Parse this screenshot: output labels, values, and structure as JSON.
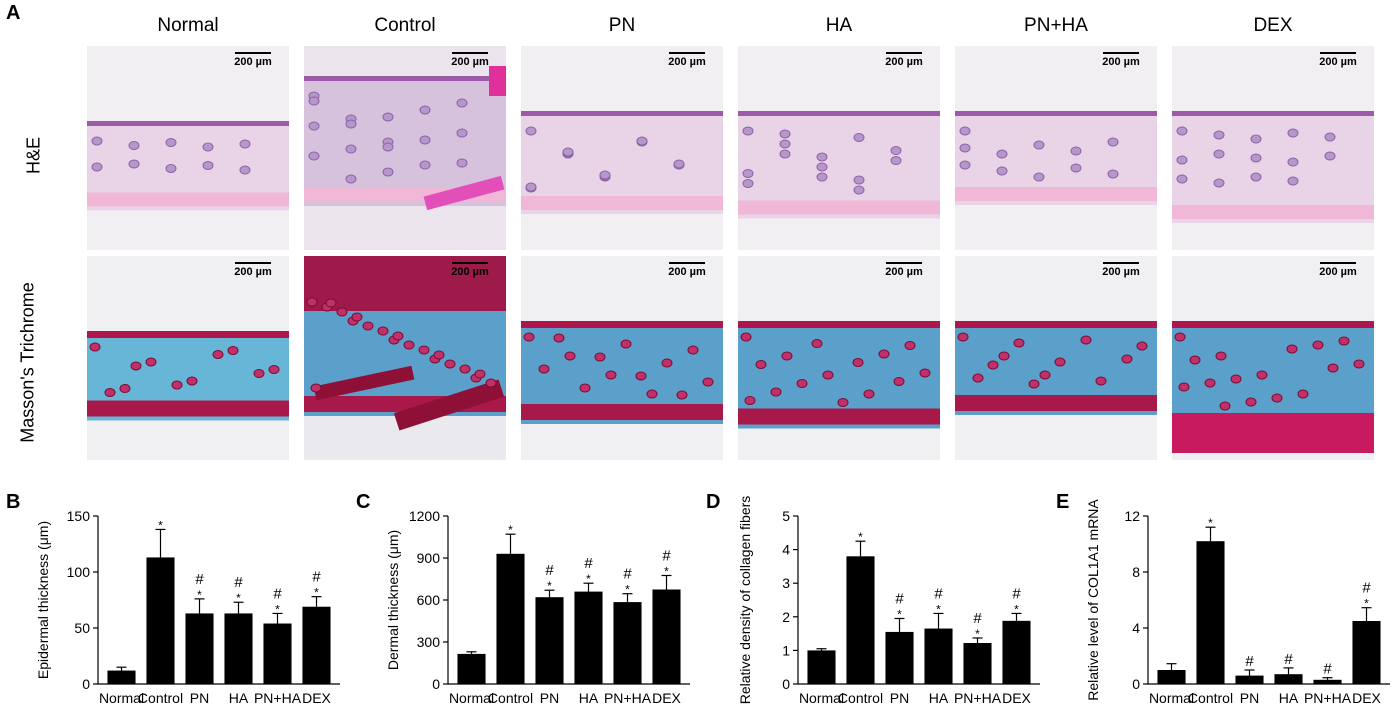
{
  "panel_a": {
    "letter": "A",
    "columns": [
      "Normal",
      "Control",
      "PN",
      "HA",
      "PN+HA",
      "DEX"
    ],
    "rows": [
      "H&E",
      "Masson's Trichrome"
    ],
    "scale_label": "200 µm"
  },
  "chart_data": [
    {
      "panel": "B",
      "type": "bar",
      "ylabel": "Epidermal thickness (μm)",
      "categories": [
        "Normal",
        "Control",
        "PN",
        "HA",
        "PN+HA",
        "DEX"
      ],
      "values": [
        12,
        113,
        63,
        63,
        54,
        69
      ],
      "errors": [
        3,
        25,
        13,
        10,
        9,
        9
      ],
      "annotations": [
        [],
        [
          "*"
        ],
        [
          "#",
          "*"
        ],
        [
          "#",
          "*"
        ],
        [
          "#",
          "*"
        ],
        [
          "#",
          "*"
        ]
      ],
      "ylim": [
        0,
        150
      ],
      "yticks": [
        0,
        50,
        100,
        150
      ]
    },
    {
      "panel": "C",
      "type": "bar",
      "ylabel": "Dermal thickness (μm)",
      "categories": [
        "Normal",
        "Control",
        "PN",
        "HA",
        "PN+HA",
        "DEX"
      ],
      "values": [
        215,
        930,
        620,
        660,
        585,
        675
      ],
      "errors": [
        15,
        140,
        50,
        60,
        60,
        100
      ],
      "annotations": [
        [],
        [
          "*"
        ],
        [
          "#",
          "*"
        ],
        [
          "#",
          "*"
        ],
        [
          "#",
          "*"
        ],
        [
          "#",
          "*"
        ]
      ],
      "ylim": [
        0,
        1200
      ],
      "yticks": [
        0,
        300,
        600,
        900,
        1200
      ]
    },
    {
      "panel": "D",
      "type": "bar",
      "ylabel": "Relative density of collagen fibers",
      "categories": [
        "Normal",
        "Control",
        "PN",
        "HA",
        "PN+HA",
        "DEX"
      ],
      "values": [
        1.0,
        3.8,
        1.55,
        1.65,
        1.22,
        1.88
      ],
      "errors": [
        0.05,
        0.45,
        0.4,
        0.45,
        0.15,
        0.22
      ],
      "annotations": [
        [],
        [
          "*"
        ],
        [
          "#",
          "*"
        ],
        [
          "#",
          "*"
        ],
        [
          "#",
          "*"
        ],
        [
          "#",
          "*"
        ]
      ],
      "ylim": [
        0,
        5
      ],
      "yticks": [
        0,
        1,
        2,
        3,
        4,
        5
      ]
    },
    {
      "panel": "E",
      "type": "bar",
      "ylabel": "Relative level of COL1A1 mRNA",
      "categories": [
        "Normal",
        "Control",
        "PN",
        "HA",
        "PN+HA",
        "DEX"
      ],
      "values": [
        1.0,
        10.2,
        0.6,
        0.7,
        0.3,
        4.5
      ],
      "errors": [
        0.45,
        1.0,
        0.4,
        0.45,
        0.15,
        0.95
      ],
      "annotations": [
        [],
        [
          "*"
        ],
        [
          "#"
        ],
        [
          "#"
        ],
        [
          "#"
        ],
        [
          "#",
          "*"
        ]
      ],
      "ylim": [
        0,
        12
      ],
      "yticks": [
        0,
        4,
        8,
        12
      ]
    }
  ]
}
